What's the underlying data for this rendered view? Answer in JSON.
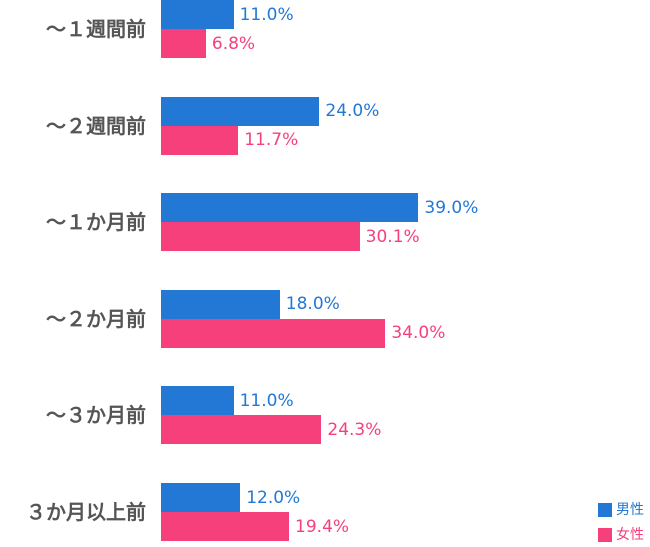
{
  "chart_data": {
    "type": "bar",
    "orientation": "horizontal",
    "categories": [
      "～１週間前",
      "～２週間前",
      "～１か月前",
      "～２か月前",
      "～３か月前",
      "３か月以上前"
    ],
    "series": [
      {
        "name": "男性",
        "values": [
          11.0,
          24.0,
          39.0,
          18.0,
          11.0,
          12.0
        ],
        "labels": [
          "11.0%",
          "24.0%",
          "39.0%",
          "18.0%",
          "11.0%",
          "12.0%"
        ],
        "color": "#2278d4"
      },
      {
        "name": "女性",
        "values": [
          6.8,
          11.7,
          30.1,
          34.0,
          24.3,
          19.4
        ],
        "labels": [
          "6.8%",
          "11.7%",
          "30.1%",
          "34.0%",
          "24.3%",
          "19.4%"
        ],
        "color": "#f5407c"
      }
    ],
    "value_unit": "%",
    "xlim": [
      0,
      100
    ],
    "grid": false,
    "legend_position": "bottom-right"
  }
}
